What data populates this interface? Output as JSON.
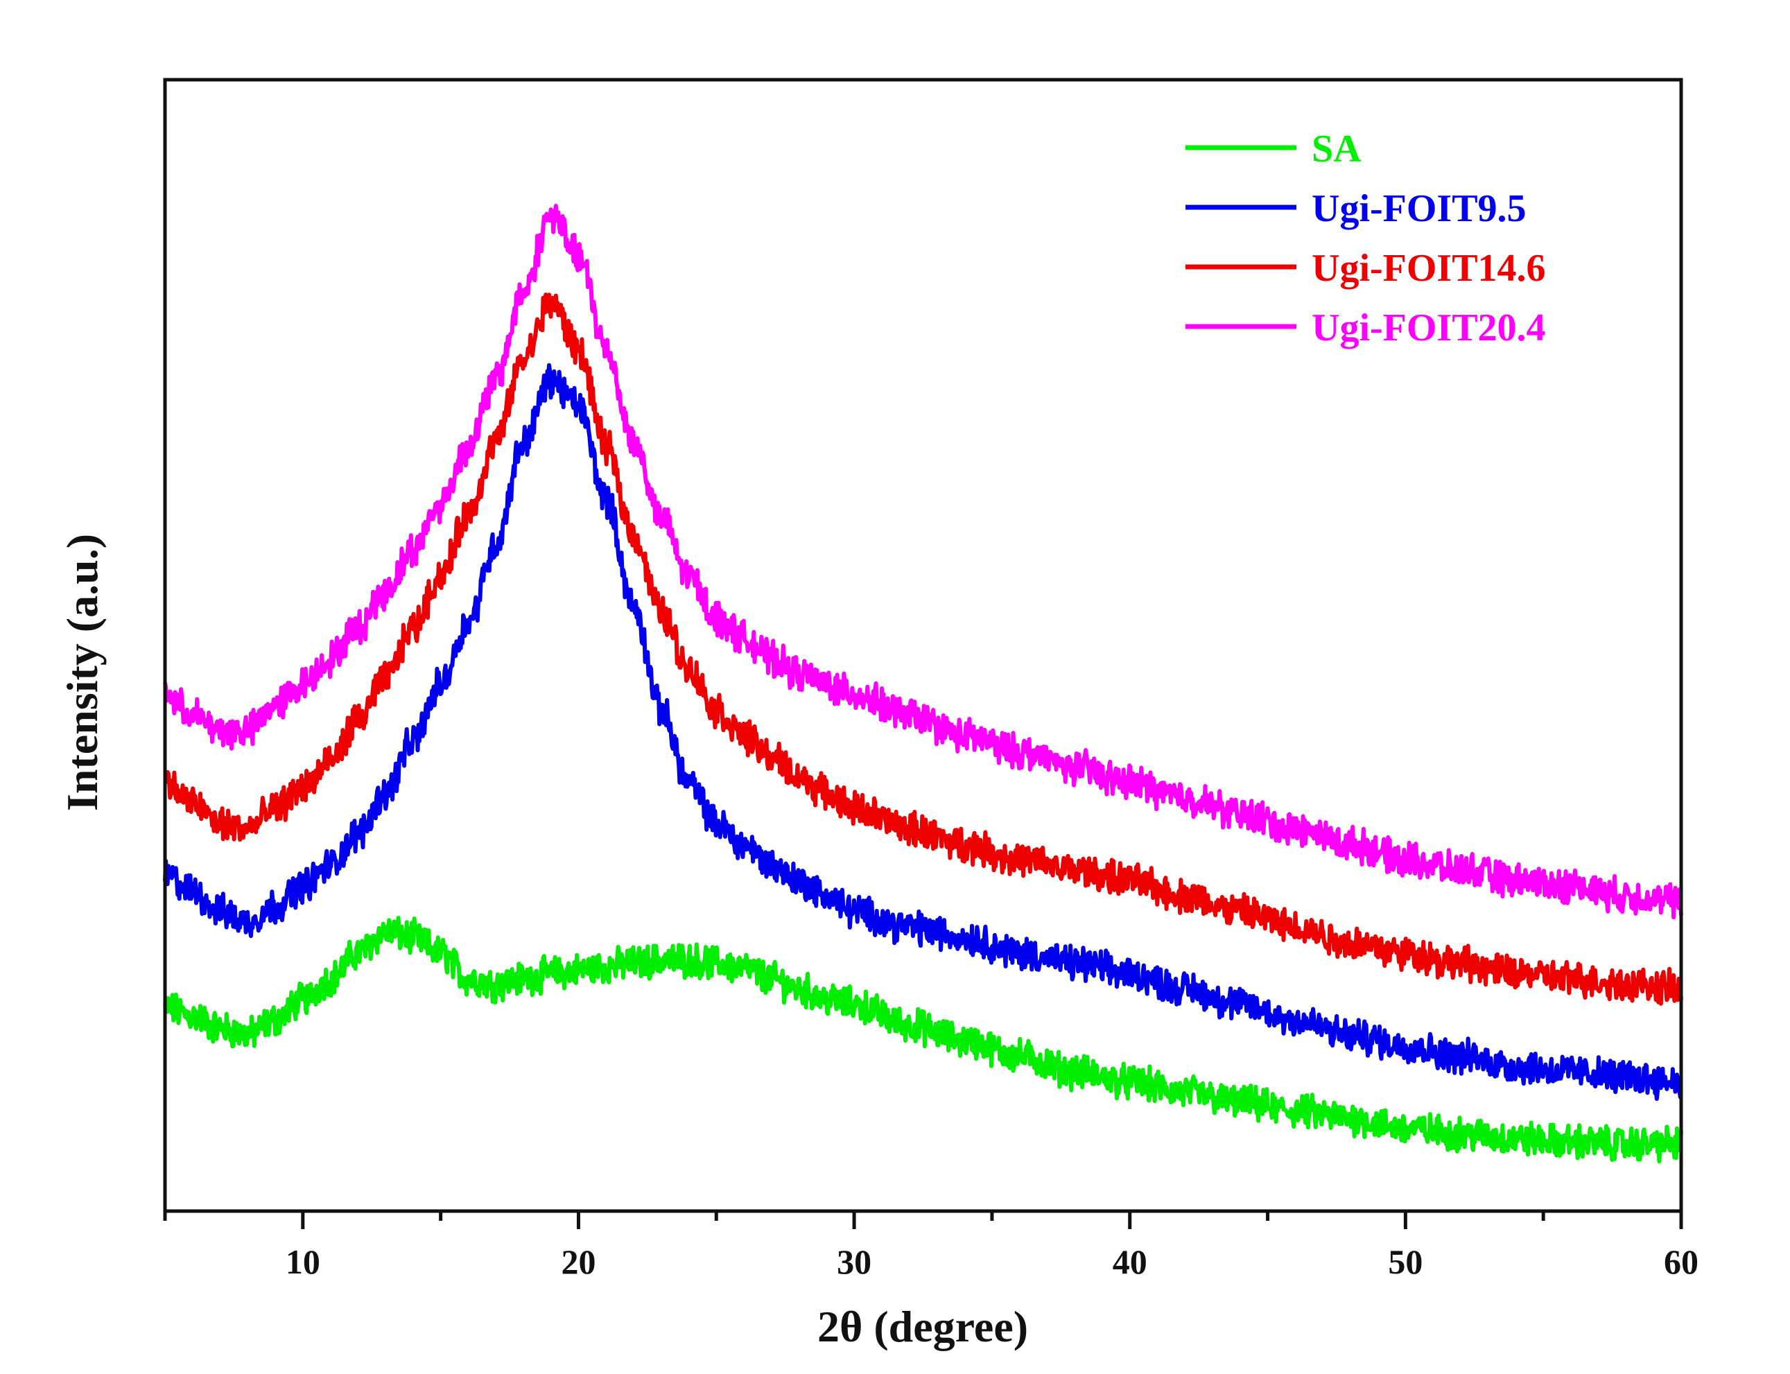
{
  "chart_data": {
    "type": "line",
    "title": "",
    "xlabel": "2θ (degree)",
    "ylabel": "Intensity (a.u.)",
    "xlim": [
      5,
      60
    ],
    "ylim": [
      0,
      100
    ],
    "y_ticks_labeled": false,
    "x_ticks": [
      10,
      20,
      30,
      40,
      50,
      60
    ],
    "x_tick_labels": [
      "10",
      "20",
      "30",
      "40",
      "50",
      "60"
    ],
    "x_minor_ticks": [
      5,
      15,
      25,
      35,
      45,
      55
    ],
    "grid": false,
    "legend_position": "top-right",
    "series": [
      {
        "name": "SA",
        "color": "#00ee00",
        "x": [
          5,
          6,
          7,
          8,
          9,
          10,
          11,
          12,
          13,
          14,
          15,
          16,
          17,
          18,
          19,
          20,
          21,
          22,
          23,
          24,
          25,
          26,
          27,
          28,
          29,
          30,
          32,
          34,
          36,
          38,
          40,
          42,
          44,
          46,
          48,
          50,
          52,
          54,
          56,
          58,
          60
        ],
        "values": [
          15.2,
          14.4,
          13.2,
          12.6,
          14.0,
          16.0,
          18.0,
          20.5,
          22.5,
          22.0,
          20.5,
          18.0,
          17.5,
          18.0,
          18.5,
          18.8,
          19.2,
          19.5,
          19.8,
          19.8,
          19.5,
          19.0,
          18.0,
          17.0,
          16.0,
          15.5,
          13.5,
          12.0,
          10.5,
          9.0,
          8.0,
          7.0,
          6.0,
          5.2,
          4.5,
          3.5,
          3.0,
          2.5,
          2.2,
          2.0,
          2.0
        ]
      },
      {
        "name": "Ugi-FOIT9.5",
        "color": "#0000ee",
        "x": [
          5,
          6,
          7,
          8,
          9,
          10,
          11,
          12,
          13,
          14,
          15,
          16,
          17,
          18,
          19,
          20,
          21,
          22,
          23,
          24,
          25,
          26,
          27,
          28,
          29,
          30,
          32,
          34,
          36,
          38,
          40,
          42,
          44,
          46,
          48,
          50,
          52,
          54,
          56,
          58,
          60
        ],
        "values": [
          28.0,
          26.5,
          24.5,
          23.5,
          25.0,
          27.0,
          29.0,
          32.0,
          36.0,
          41.0,
          46.5,
          52.5,
          60.0,
          70.0,
          76.0,
          73.5,
          64.5,
          54.0,
          44.0,
          37.0,
          33.0,
          31.0,
          29.0,
          27.5,
          26.0,
          24.5,
          23.0,
          22.0,
          20.5,
          19.5,
          18.5,
          17.0,
          15.5,
          14.0,
          12.5,
          11.5,
          10.5,
          9.5,
          9.0,
          8.5,
          8.0
        ]
      },
      {
        "name": "Ugi-FOIT14.6",
        "color": "#ee0000",
        "x": [
          5,
          6,
          7,
          8,
          9,
          10,
          11,
          12,
          13,
          14,
          15,
          16,
          17,
          18,
          19,
          20,
          21,
          22,
          23,
          24,
          25,
          26,
          27,
          28,
          29,
          30,
          32,
          34,
          36,
          38,
          40,
          42,
          44,
          46,
          48,
          50,
          52,
          54,
          56,
          58,
          60
        ],
        "values": [
          37.0,
          35.0,
          33.0,
          32.5,
          34.5,
          36.5,
          39.0,
          43.0,
          47.0,
          52.0,
          57.0,
          63.0,
          70.0,
          78.0,
          83.5,
          79.0,
          69.5,
          61.0,
          53.5,
          48.0,
          44.0,
          41.5,
          39.5,
          37.5,
          36.0,
          34.5,
          32.5,
          31.0,
          29.5,
          28.5,
          27.5,
          26.0,
          24.5,
          23.0,
          21.5,
          20.5,
          19.5,
          18.5,
          18.0,
          17.5,
          17.0
        ]
      },
      {
        "name": "Ugi-FOIT20.4",
        "color": "#ff00ff",
        "x": [
          5,
          6,
          7,
          8,
          9,
          10,
          11,
          12,
          13,
          14,
          15,
          16,
          17,
          18,
          19,
          20,
          21,
          22,
          23,
          24,
          25,
          26,
          27,
          28,
          29,
          30,
          32,
          34,
          36,
          38,
          40,
          42,
          44,
          46,
          48,
          50,
          52,
          54,
          56,
          58,
          60
        ],
        "values": [
          45.5,
          43.5,
          42.0,
          42.0,
          44.5,
          46.5,
          49.0,
          52.0,
          55.5,
          59.5,
          64.0,
          69.5,
          76.0,
          84.5,
          92.0,
          88.0,
          79.0,
          70.0,
          62.5,
          57.0,
          53.0,
          51.0,
          49.0,
          47.5,
          46.5,
          45.5,
          43.5,
          41.5,
          40.0,
          38.5,
          37.0,
          35.5,
          34.0,
          32.5,
          31.0,
          29.5,
          28.5,
          27.5,
          27.0,
          26.0,
          25.5
        ]
      }
    ]
  }
}
